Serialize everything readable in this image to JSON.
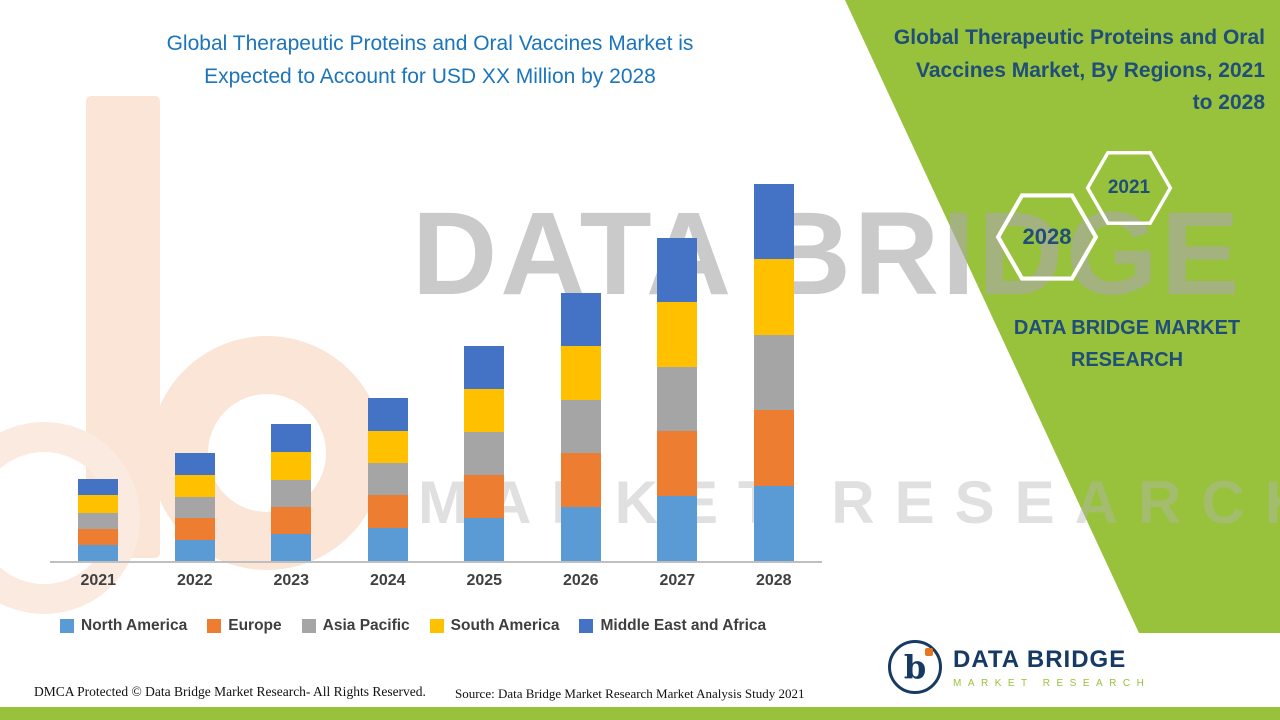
{
  "title": {
    "line1": "Global Therapeutic Proteins and Oral Vaccines Market is",
    "line2": "Expected to Account for USD XX Million by 2028"
  },
  "watermark": {
    "line1": "DATA BRIDGE",
    "line2": "MARKET RESEARCH"
  },
  "side_panel": {
    "heading": "Global Therapeutic Proteins and Oral Vaccines Market, By Regions, 2021 to 2028",
    "hexagon_front": "2021",
    "hexagon_back": "2028",
    "brand": "DATA BRIDGE MARKET RESEARCH"
  },
  "chart_data": {
    "type": "bar",
    "stacked": true,
    "title": "Global Therapeutic Proteins and Oral Vaccines Market is Expected to Account for USD XX Million by 2028",
    "categories": [
      "2021",
      "2022",
      "2023",
      "2024",
      "2025",
      "2026",
      "2027",
      "2028"
    ],
    "series": [
      {
        "name": "North America",
        "color": "#5B9BD5",
        "values": [
          16,
          21,
          27,
          33,
          43,
          54,
          65,
          75
        ]
      },
      {
        "name": "Europe",
        "color": "#ED7D31",
        "values": [
          16,
          22,
          27,
          33,
          43,
          54,
          65,
          76
        ]
      },
      {
        "name": "Asia Pacific",
        "color": "#A5A5A5",
        "values": [
          16,
          21,
          27,
          32,
          43,
          53,
          64,
          75
        ]
      },
      {
        "name": "South America",
        "color": "#FFC000",
        "values": [
          18,
          22,
          28,
          32,
          43,
          54,
          65,
          76
        ]
      },
      {
        "name": "Middle East and Africa",
        "color": "#4472C4",
        "values": [
          16,
          22,
          28,
          33,
          43,
          53,
          64,
          75
        ]
      }
    ],
    "xlabel": "",
    "ylabel": "",
    "value_axis_visible": false,
    "grid": false,
    "legend_position": "bottom"
  },
  "footer": {
    "dmca": "DMCA Protected © Data Bridge Market Research- All Rights Reserved.",
    "source": "Source: Data Bridge Market Research Market Analysis Study 2021"
  },
  "logo": {
    "mark": "b",
    "name": "DATA BRIDGE",
    "subtitle": "MARKET RESEARCH"
  },
  "colors": {
    "green": "#98C13C",
    "title_blue": "#1B75BC",
    "panel_blue": "#1F4E79"
  }
}
